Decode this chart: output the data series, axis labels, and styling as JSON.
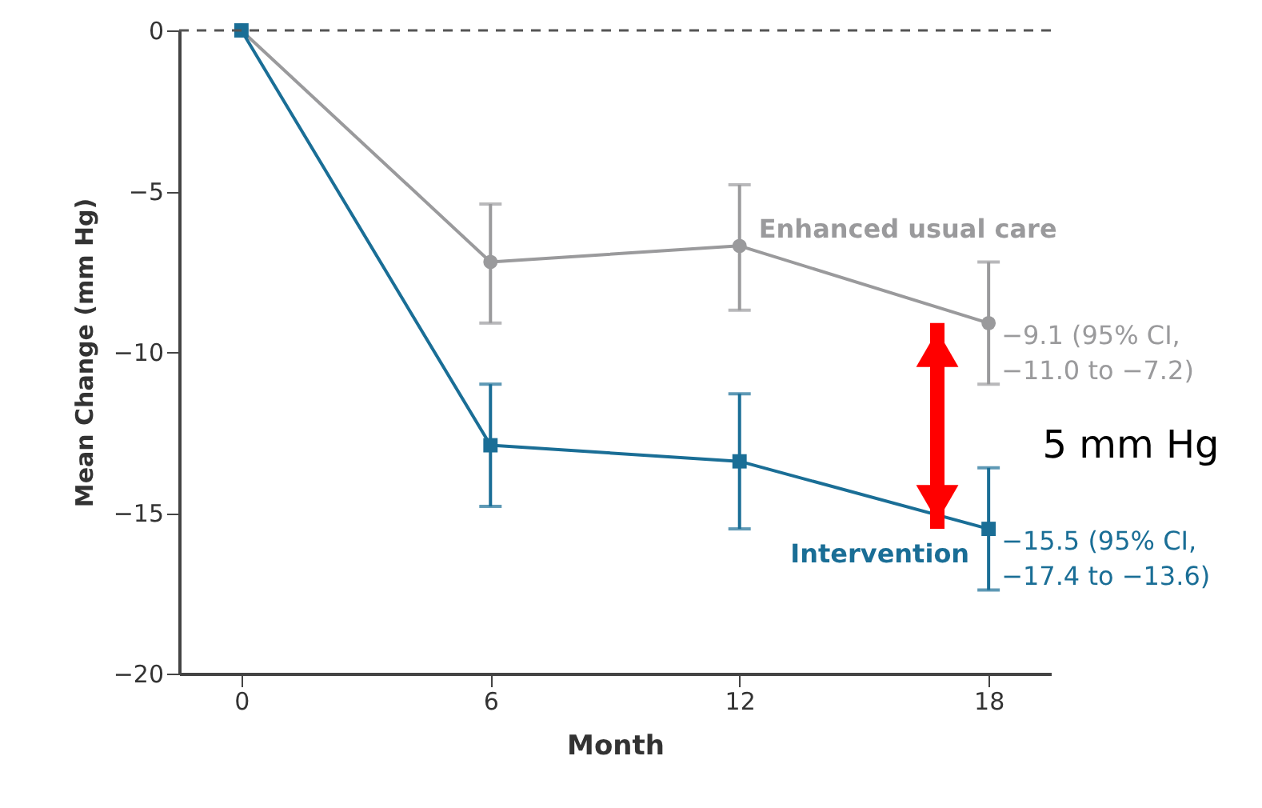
{
  "chart_data": {
    "type": "line",
    "xlabel": "Month",
    "ylabel": "Mean Change (mm Hg)",
    "x": [
      0,
      6,
      12,
      18
    ],
    "series": [
      {
        "name": "Enhanced usual care",
        "color": "#9a9a9c",
        "marker": "circle",
        "values": [
          0,
          -7.2,
          -6.7,
          -9.1
        ],
        "errors": [
          null,
          [
            -9.1,
            -5.4
          ],
          [
            -8.7,
            -4.8
          ],
          [
            -11.0,
            -7.2
          ]
        ]
      },
      {
        "name": "Intervention",
        "color": "#1a6e96",
        "marker": "square",
        "values": [
          0,
          -12.9,
          -13.4,
          -15.5
        ],
        "errors": [
          null,
          [
            -14.8,
            -11.0
          ],
          [
            -15.5,
            -11.3
          ],
          [
            -17.4,
            -13.6
          ]
        ]
      }
    ],
    "xlim": [
      -1.5,
      19.5
    ],
    "xticks": [
      0,
      6,
      12,
      18
    ],
    "ylim": [
      -20,
      0
    ],
    "yticks": [
      0,
      -5,
      -10,
      -15,
      -20
    ],
    "ref_lines": [
      {
        "axis": "y",
        "value": 0,
        "line_style": "dashed",
        "color": "#555555"
      }
    ],
    "annotations": [
      {
        "text": "−9.1 (95% CI,\n−11.0 to −7.2)",
        "x": 18,
        "y": -9.1
      },
      {
        "text": "−15.5 (95% CI,\n−17.4 to −13.6)",
        "x": 18,
        "y": -15.5
      },
      "5 mm Hg"
    ],
    "grid": false,
    "line_style": "solid"
  }
}
